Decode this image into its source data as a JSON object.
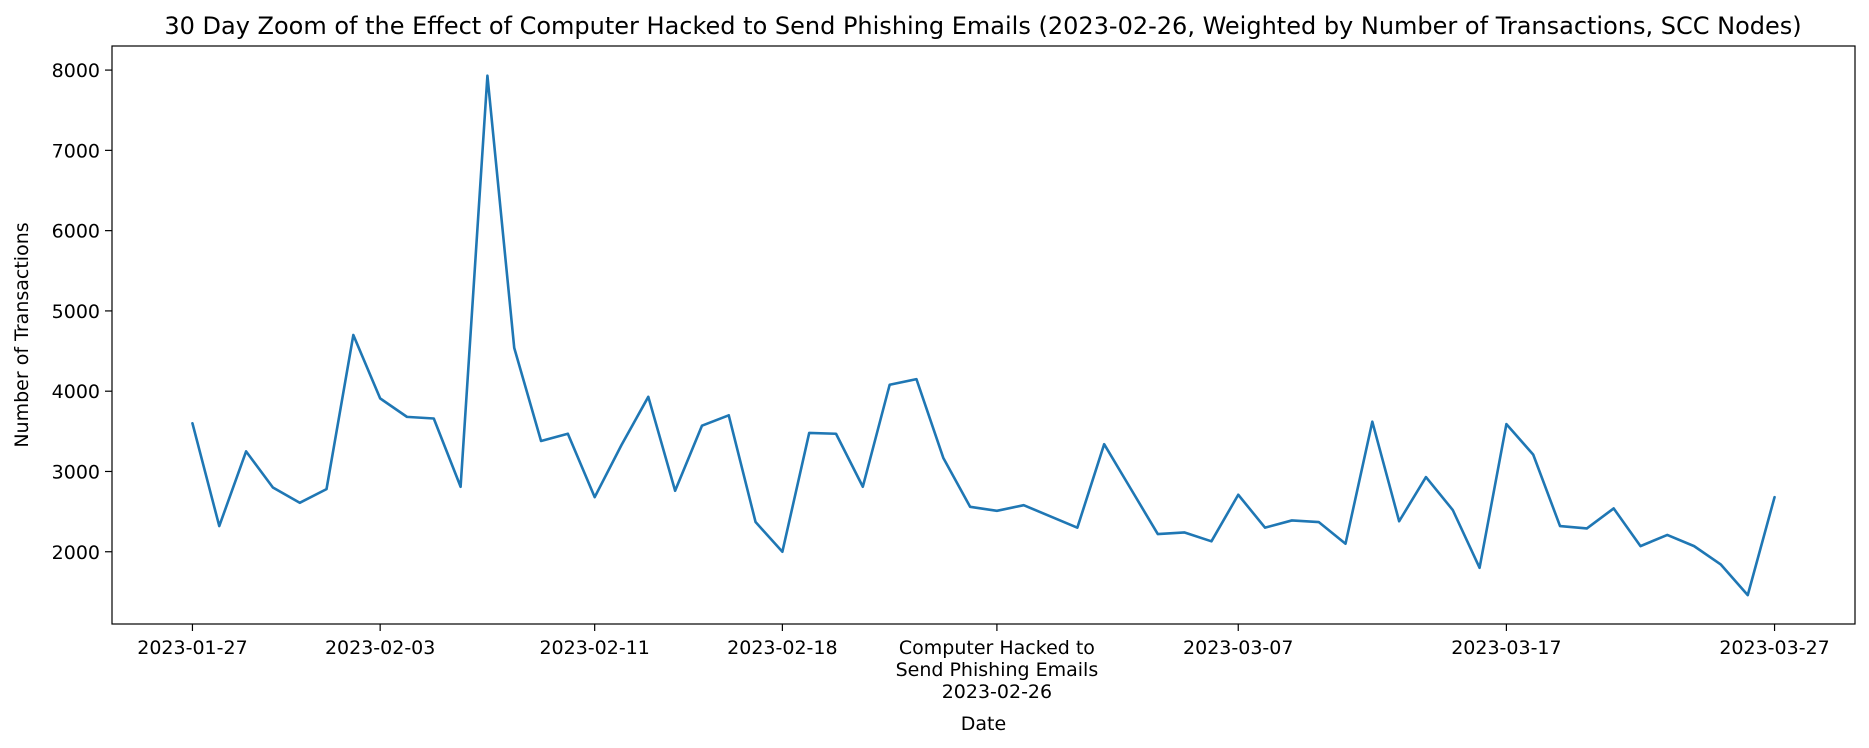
{
  "chart_data": {
    "type": "line",
    "title": "30 Day Zoom of the Effect of Computer Hacked to Send Phishing Emails (2023-02-26, Weighted by Number of Transactions, SCC Nodes)",
    "xlabel": "Date",
    "ylabel": "Number of Transactions",
    "xlim": [
      "2023-01-24",
      "2023-03-30"
    ],
    "ylim": [
      1100,
      8300
    ],
    "x_ticks": [
      {
        "date": "2023-01-27",
        "label": [
          "2023-01-27"
        ]
      },
      {
        "date": "2023-02-03",
        "label": [
          "2023-02-03"
        ]
      },
      {
        "date": "2023-02-11",
        "label": [
          "2023-02-11"
        ]
      },
      {
        "date": "2023-02-18",
        "label": [
          "2023-02-18"
        ]
      },
      {
        "date": "2023-02-26",
        "label": [
          "Computer Hacked to",
          "Send Phishing Emails",
          "2023-02-26"
        ]
      },
      {
        "date": "2023-03-07",
        "label": [
          "2023-03-07"
        ]
      },
      {
        "date": "2023-03-17",
        "label": [
          "2023-03-17"
        ]
      },
      {
        "date": "2023-03-27",
        "label": [
          "2023-03-27"
        ]
      }
    ],
    "y_ticks": [
      2000,
      3000,
      4000,
      5000,
      6000,
      7000,
      8000
    ],
    "grid": false,
    "series": [
      {
        "name": "Number of Transactions",
        "color": "#1f77b4",
        "x": [
          "2023-01-27",
          "2023-01-28",
          "2023-01-29",
          "2023-01-30",
          "2023-01-31",
          "2023-02-01",
          "2023-02-02",
          "2023-02-03",
          "2023-02-04",
          "2023-02-05",
          "2023-02-06",
          "2023-02-07",
          "2023-02-08",
          "2023-02-09",
          "2023-02-10",
          "2023-02-11",
          "2023-02-12",
          "2023-02-13",
          "2023-02-14",
          "2023-02-15",
          "2023-02-16",
          "2023-02-17",
          "2023-02-18",
          "2023-02-19",
          "2023-02-20",
          "2023-02-21",
          "2023-02-22",
          "2023-02-23",
          "2023-02-24",
          "2023-02-25",
          "2023-02-26",
          "2023-02-27",
          "2023-02-28",
          "2023-03-01",
          "2023-03-02",
          "2023-03-03",
          "2023-03-04",
          "2023-03-05",
          "2023-03-06",
          "2023-03-07",
          "2023-03-08",
          "2023-03-09",
          "2023-03-10",
          "2023-03-11",
          "2023-03-12",
          "2023-03-13",
          "2023-03-14",
          "2023-03-15",
          "2023-03-16",
          "2023-03-17",
          "2023-03-18",
          "2023-03-19",
          "2023-03-20",
          "2023-03-21",
          "2023-03-22",
          "2023-03-23",
          "2023-03-24",
          "2023-03-25",
          "2023-03-26",
          "2023-03-27"
        ],
        "values": [
          3600,
          2320,
          3250,
          2800,
          2610,
          2780,
          4700,
          3910,
          3680,
          3660,
          2810,
          7930,
          4540,
          3380,
          3470,
          2680,
          3330,
          3930,
          2760,
          3570,
          3700,
          2370,
          2000,
          3480,
          3470,
          2810,
          4080,
          4150,
          3170,
          2560,
          2510,
          2580,
          2440,
          2300,
          3340,
          2780,
          2220,
          2240,
          2130,
          2710,
          2300,
          2390,
          2370,
          2100,
          3620,
          2380,
          2930,
          2520,
          1800,
          3590,
          3210,
          2320,
          2290,
          2540,
          2070,
          2210,
          2070,
          1840,
          1460,
          2680
        ]
      }
    ]
  }
}
